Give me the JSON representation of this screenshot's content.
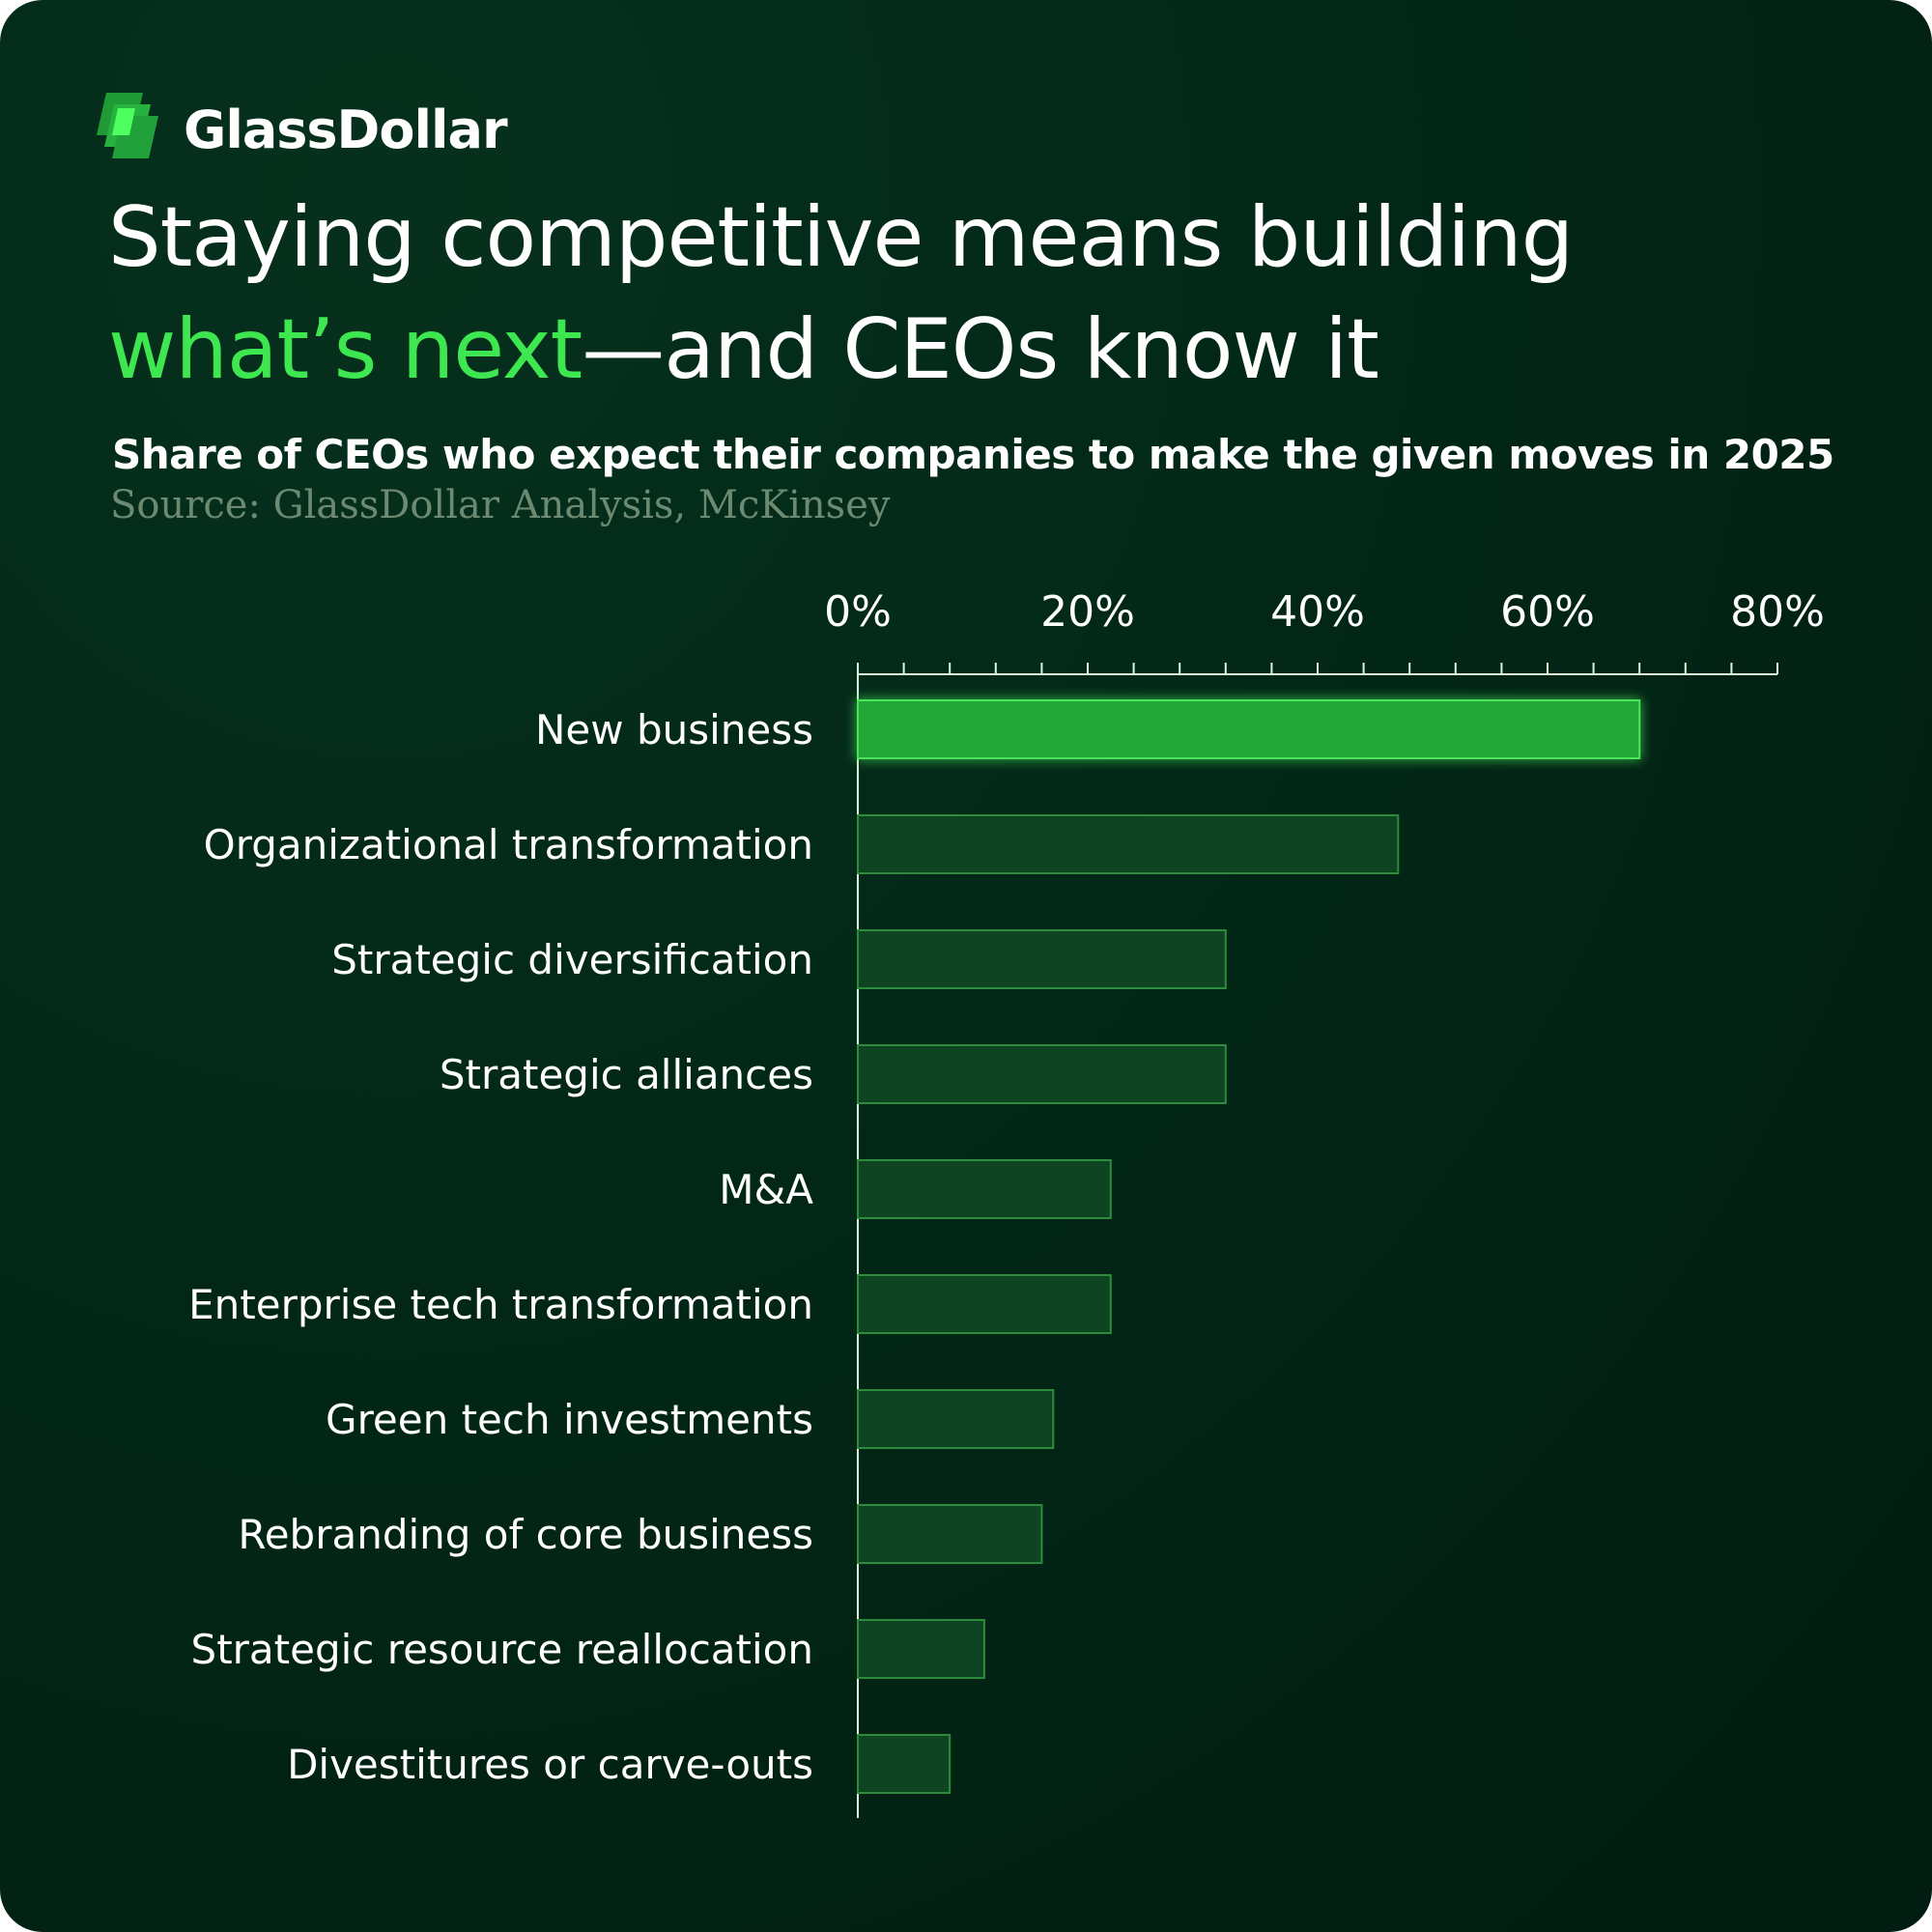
{
  "brand": {
    "name": "GlassDollar",
    "logo_icon": "glass-stack-icon"
  },
  "headline": {
    "line1": "Staying competitive means building",
    "accent": "what’s next",
    "rest": "—and CEOs know it"
  },
  "chart_data": {
    "type": "bar",
    "orientation": "horizontal",
    "title": "Share of CEOs who expect their companies to make the given moves in 2025",
    "source": "Source: GlassDollar Analysis, McKinsey",
    "categories": [
      "New business",
      "Organizational transformation",
      "Strategic diversification",
      "Strategic alliances",
      "M&A",
      "Enterprise tech transformation",
      "Green tech investments",
      "Rebranding of core business",
      "Strategic resource reallocation",
      "Divestitures or carve-outs"
    ],
    "values": [
      68,
      47,
      32,
      32,
      22,
      22,
      17,
      16,
      11,
      8
    ],
    "xlim": [
      0,
      80
    ],
    "xticks": [
      0,
      20,
      40,
      60,
      80
    ],
    "xtick_labels": [
      "0%",
      "20%",
      "40%",
      "60%",
      "80%"
    ],
    "minor_tick_step": 4,
    "axis_position": "top",
    "highlight_index": 0,
    "colors": {
      "highlight": "#24a838",
      "highlight_stroke": "#4be35a",
      "bar": "#0f4423",
      "bar_stroke": "#2c8c3c",
      "axis": "#d9f5dc"
    }
  }
}
